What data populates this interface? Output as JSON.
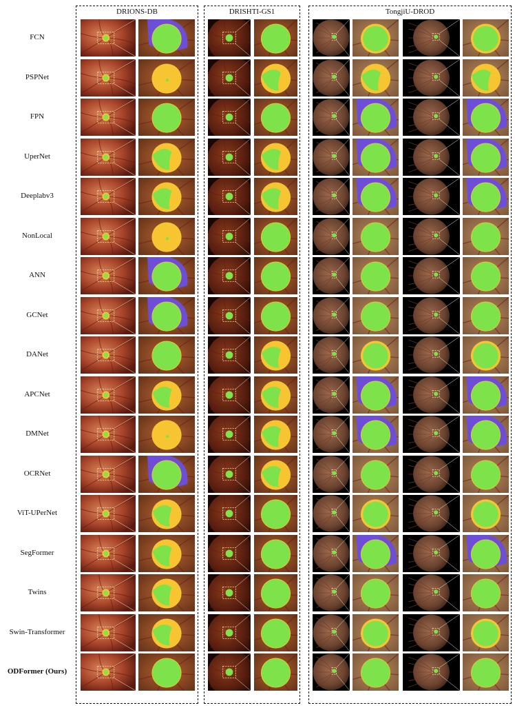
{
  "figure": {
    "groups": [
      {
        "id": "drions",
        "title": "DRIONS-DB",
        "view": "drions"
      },
      {
        "id": "drishti",
        "title": "DRISHTI-GS1",
        "view": "drishti"
      },
      {
        "id": "tongji",
        "title": "TongjiU-DROD",
        "view": "tongji"
      }
    ],
    "rows": [
      {
        "label": "FCN",
        "bold": false,
        "pred": {
          "drions": "over",
          "drishti": "good",
          "tongji": "yellowedge"
        }
      },
      {
        "label": "PSPNet",
        "bold": false,
        "pred": {
          "drions": "miss",
          "drishti": "partial",
          "tongji": "partial"
        }
      },
      {
        "label": "FPN",
        "bold": false,
        "pred": {
          "drions": "good",
          "drishti": "good",
          "tongji": "over"
        }
      },
      {
        "label": "UperNet",
        "bold": false,
        "pred": {
          "drions": "partial",
          "drishti": "partial",
          "tongji": "over"
        }
      },
      {
        "label": "Deeplabv3",
        "bold": false,
        "pred": {
          "drions": "partial",
          "drishti": "partial",
          "tongji": "over"
        }
      },
      {
        "label": "NonLocal",
        "bold": false,
        "pred": {
          "drions": "miss",
          "drishti": "good",
          "tongji": "good"
        }
      },
      {
        "label": "ANN",
        "bold": false,
        "pred": {
          "drions": "over",
          "drishti": "good",
          "tongji": "good"
        }
      },
      {
        "label": "GCNet",
        "bold": false,
        "pred": {
          "drions": "over",
          "drishti": "good",
          "tongji": "good"
        }
      },
      {
        "label": "DANet",
        "bold": false,
        "pred": {
          "drions": "good",
          "drishti": "partial",
          "tongji": "yellowedge"
        }
      },
      {
        "label": "APCNet",
        "bold": false,
        "pred": {
          "drions": "partial",
          "drishti": "partial",
          "tongji": "over"
        }
      },
      {
        "label": "DMNet",
        "bold": false,
        "pred": {
          "drions": "miss",
          "drishti": "partial",
          "tongji": "over"
        }
      },
      {
        "label": "OCRNet",
        "bold": false,
        "pred": {
          "drions": "over",
          "drishti": "partial",
          "tongji": "good"
        }
      },
      {
        "label": "ViT-UPerNet",
        "bold": false,
        "pred": {
          "drions": "partial",
          "drishti": "good",
          "tongji": "yellowedge"
        }
      },
      {
        "label": "SegFormer",
        "bold": false,
        "pred": {
          "drions": "partial",
          "drishti": "good",
          "tongji": "over"
        }
      },
      {
        "label": "Twins",
        "bold": false,
        "pred": {
          "drions": "partial",
          "drishti": "good",
          "tongji": "good"
        }
      },
      {
        "label": "Swin-Transformer",
        "bold": false,
        "pred": {
          "drions": "partial",
          "drishti": "good",
          "tongji": "yellowedge"
        }
      },
      {
        "label": "ODFormer (Ours)",
        "bold": true,
        "pred": {
          "drions": "good",
          "drishti": "good",
          "tongji": "good"
        }
      }
    ]
  },
  "colors": {
    "fundus_bright": "#d9845a",
    "fundus_mid": "#a8452a",
    "fundus_dark": "#5a1a10",
    "fundus_dim_center": "#9b6a4e",
    "fundus_dim_edge": "#3c2418",
    "zoom_bg": "#b5612f",
    "zoom_bg_dark": "#5e2f18",
    "vessel": "#6e1a10",
    "gt_yellow": "#f7c531",
    "pred_green": "#7ee34a",
    "over_purple": "#6c4fd6",
    "dash_box": "#f4e9a0",
    "connector": "#f3f0c8"
  }
}
